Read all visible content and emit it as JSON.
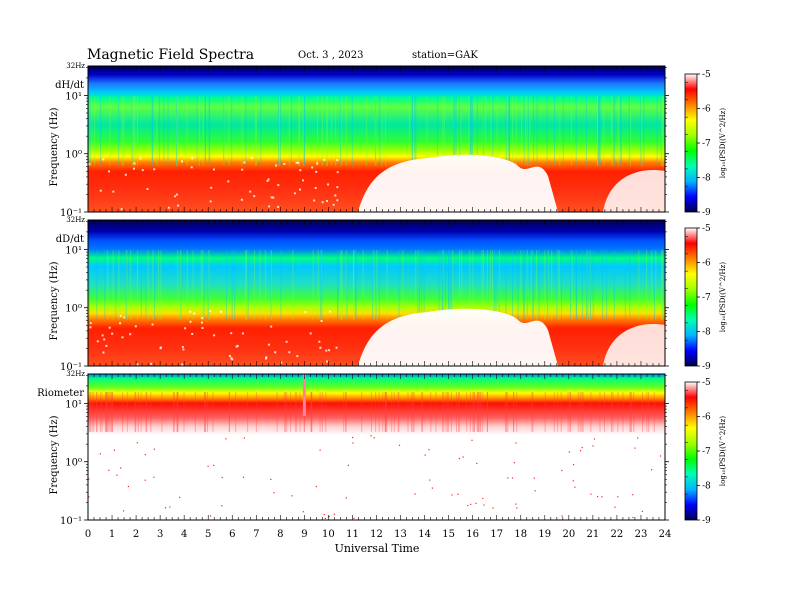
{
  "header": {
    "title": "Magnetic  Field  Spectra",
    "date": "Oct. 3  , 2023",
    "station": "station=GAK"
  },
  "chart_data": [
    {
      "type": "heatmap",
      "panel_label": "dH/dt",
      "ylabel": "Frequency (Hz)",
      "ytick_labels": [
        "10¹",
        "10⁰",
        "10⁻¹"
      ],
      "ytop_label": "32Hz",
      "y_scale": "log",
      "ylim": [
        0.1,
        32
      ],
      "x_range": [
        0,
        24
      ],
      "colorbar": {
        "label": "log₁₀(PSD((V^2/Hz)",
        "ticks": [
          -5,
          -6,
          -7,
          -8,
          -9
        ],
        "tick_labels": [
          "-5",
          "-6",
          "-7",
          "-8",
          "-9"
        ],
        "range": [
          -9,
          -5
        ]
      }
    },
    {
      "type": "heatmap",
      "panel_label": "dD/dt",
      "ylabel": "Frequency (Hz)",
      "ytick_labels": [
        "10¹",
        "10⁰",
        "10⁻¹"
      ],
      "ytop_label": "32Hz",
      "y_scale": "log",
      "ylim": [
        0.1,
        32
      ],
      "x_range": [
        0,
        24
      ],
      "colorbar": {
        "label": "log₁₀(PSD((V^2/Hz)",
        "ticks": [
          -5,
          -6,
          -7,
          -8,
          -9
        ],
        "tick_labels": [
          "-5",
          "-6",
          "-7",
          "-8",
          "-9"
        ],
        "range": [
          -9,
          -5
        ]
      }
    },
    {
      "type": "heatmap",
      "panel_label": "Riometer",
      "ylabel": "Frequency (Hz)",
      "ytick_labels": [
        "10¹",
        "10⁰",
        "10⁻¹"
      ],
      "ytop_label": "32Hz",
      "y_scale": "log",
      "ylim": [
        0.1,
        32
      ],
      "x_range": [
        0,
        24
      ],
      "colorbar": {
        "label": "log₁₀(PSD((V^2/Hz)",
        "ticks": [
          -5,
          -6,
          -7,
          -8,
          -9
        ],
        "tick_labels": [
          "-5",
          "-6",
          "-7",
          "-8",
          "-9"
        ],
        "range": [
          -9,
          -5
        ]
      }
    }
  ],
  "xaxis": {
    "label": "Universal Time",
    "ticks": [
      0,
      1,
      2,
      3,
      4,
      5,
      6,
      7,
      8,
      9,
      10,
      11,
      12,
      13,
      14,
      15,
      16,
      17,
      18,
      19,
      20,
      21,
      22,
      23,
      24
    ],
    "tick_labels": [
      "0",
      "1",
      "2",
      "3",
      "4",
      "5",
      "6",
      "7",
      "8",
      "9",
      "10",
      "11",
      "12",
      "13",
      "14",
      "15",
      "16",
      "17",
      "18",
      "19",
      "20",
      "21",
      "22",
      "23",
      "24"
    ]
  },
  "colormap": [
    "#000050",
    "#0000ff",
    "#00b4ff",
    "#00ffb4",
    "#00ff00",
    "#a0ff00",
    "#ffff00",
    "#ff8000",
    "#ff0000",
    "#ffffff"
  ]
}
